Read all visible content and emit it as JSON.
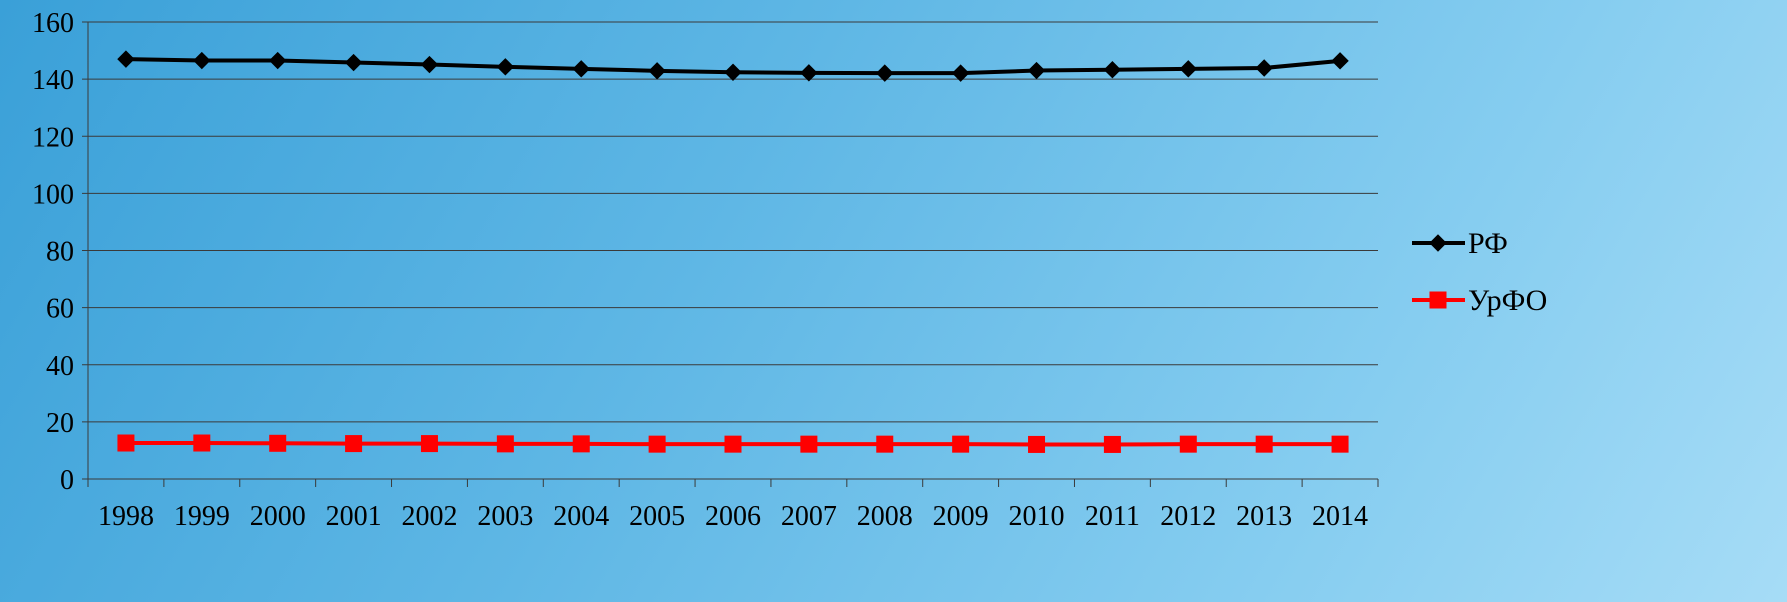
{
  "chart_data": {
    "type": "line",
    "categories": [
      "1998",
      "1999",
      "2000",
      "2001",
      "2002",
      "2003",
      "2004",
      "2005",
      "2006",
      "2007",
      "2008",
      "2009",
      "2010",
      "2011",
      "2012",
      "2013",
      "2014"
    ],
    "series": [
      {
        "name": "РФ",
        "color": "#000000",
        "marker": "diamond",
        "values": [
          147,
          146.5,
          146.5,
          145.8,
          145.1,
          144.3,
          143.6,
          142.9,
          142.4,
          142.2,
          142.1,
          142.1,
          143.0,
          143.3,
          143.6,
          143.9,
          146.4
        ]
      },
      {
        "name": "УрФО",
        "color": "#ff0000",
        "marker": "square",
        "values": [
          12.6,
          12.6,
          12.5,
          12.4,
          12.4,
          12.3,
          12.3,
          12.2,
          12.2,
          12.2,
          12.2,
          12.2,
          12.1,
          12.1,
          12.2,
          12.2,
          12.2
        ]
      }
    ],
    "ylim": [
      0,
      160
    ],
    "yticks": [
      "0",
      "20",
      "40",
      "60",
      "80",
      "100",
      "120",
      "140",
      "160"
    ],
    "grid": true,
    "legend": "right",
    "title": "",
    "xlabel": "",
    "ylabel": ""
  }
}
